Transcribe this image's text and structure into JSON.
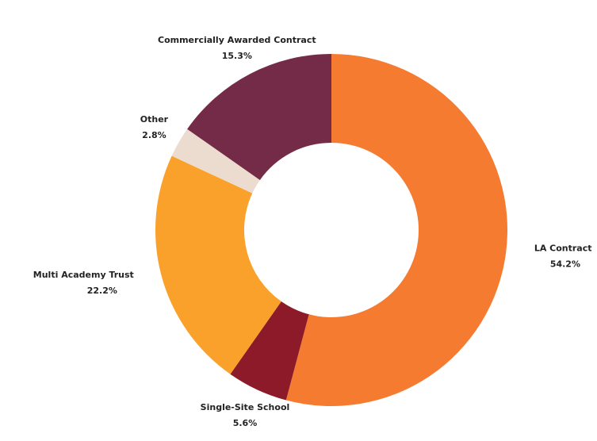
{
  "chart_data": {
    "type": "donut",
    "categories": [
      "LA Contract",
      "Single-Site School",
      "Multi Academy Trust",
      "Other",
      "Commercially Awarded Contract"
    ],
    "values": [
      54.2,
      5.6,
      22.2,
      2.8,
      15.3
    ],
    "value_labels": [
      "54.2%",
      "5.6%",
      "22.2%",
      "2.8%",
      "15.3%"
    ],
    "colors": [
      "#f47b30",
      "#8c1a28",
      "#f9a12b",
      "#ecdccf",
      "#732b47"
    ]
  }
}
